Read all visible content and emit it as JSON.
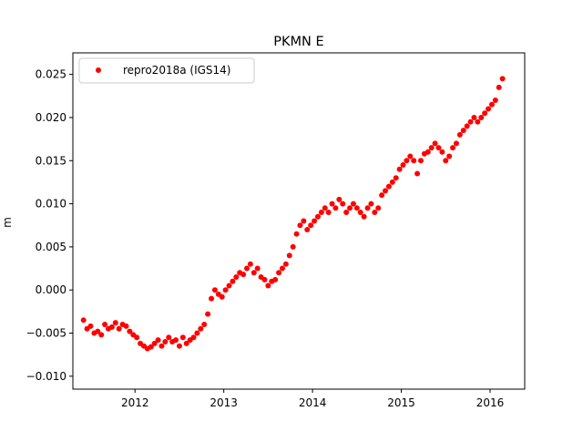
{
  "chart_data": {
    "type": "scatter",
    "title": "PKMN E",
    "xlabel": "",
    "ylabel": "m",
    "xlim": [
      2011.3,
      2016.39
    ],
    "ylim": [
      -0.0115,
      0.0275
    ],
    "xticks": [
      2012,
      2013,
      2014,
      2015,
      2016
    ],
    "xtick_labels": [
      "2012",
      "2013",
      "2014",
      "2015",
      "2016"
    ],
    "yticks": [
      -0.01,
      -0.005,
      0.0,
      0.005,
      0.01,
      0.015,
      0.02,
      0.025
    ],
    "ytick_labels": [
      "−0.010",
      "−0.005",
      "0.000",
      "0.005",
      "0.010",
      "0.015",
      "0.020",
      "0.025"
    ],
    "grid": false,
    "legend_position": "top-left",
    "series": [
      {
        "name": "repro2018a (IGS14)",
        "color": "#ff0000",
        "marker": "circle",
        "x": [
          2011.42,
          2011.46,
          2011.5,
          2011.54,
          2011.58,
          2011.62,
          2011.66,
          2011.7,
          2011.74,
          2011.78,
          2011.82,
          2011.86,
          2011.9,
          2011.94,
          2011.98,
          2012.02,
          2012.06,
          2012.1,
          2012.14,
          2012.18,
          2012.22,
          2012.26,
          2012.3,
          2012.34,
          2012.38,
          2012.42,
          2012.46,
          2012.5,
          2012.54,
          2012.58,
          2012.62,
          2012.66,
          2012.7,
          2012.74,
          2012.78,
          2012.82,
          2012.86,
          2012.9,
          2012.94,
          2012.98,
          2013.02,
          2013.06,
          2013.1,
          2013.14,
          2013.18,
          2013.22,
          2013.26,
          2013.3,
          2013.34,
          2013.38,
          2013.42,
          2013.46,
          2013.5,
          2013.54,
          2013.58,
          2013.62,
          2013.66,
          2013.7,
          2013.74,
          2013.78,
          2013.82,
          2013.86,
          2013.9,
          2013.94,
          2013.98,
          2014.02,
          2014.06,
          2014.1,
          2014.14,
          2014.18,
          2014.22,
          2014.26,
          2014.3,
          2014.34,
          2014.38,
          2014.42,
          2014.46,
          2014.5,
          2014.54,
          2014.58,
          2014.62,
          2014.66,
          2014.7,
          2014.74,
          2014.78,
          2014.82,
          2014.86,
          2014.9,
          2014.94,
          2014.98,
          2015.02,
          2015.06,
          2015.1,
          2015.14,
          2015.18,
          2015.22,
          2015.26,
          2015.3,
          2015.34,
          2015.38,
          2015.42,
          2015.46,
          2015.5,
          2015.54,
          2015.58,
          2015.62,
          2015.66,
          2015.7,
          2015.74,
          2015.78,
          2015.82,
          2015.86,
          2015.9,
          2015.94,
          2015.98,
          2016.02,
          2016.06,
          2016.1,
          2016.14
        ],
        "y": [
          -0.0035,
          -0.0045,
          -0.0042,
          -0.005,
          -0.0048,
          -0.0052,
          -0.004,
          -0.0045,
          -0.0043,
          -0.0038,
          -0.0045,
          -0.004,
          -0.0042,
          -0.0048,
          -0.0052,
          -0.0055,
          -0.0062,
          -0.0065,
          -0.0068,
          -0.0066,
          -0.0062,
          -0.0058,
          -0.0065,
          -0.006,
          -0.0055,
          -0.006,
          -0.0058,
          -0.0065,
          -0.0055,
          -0.0062,
          -0.0058,
          -0.0055,
          -0.005,
          -0.0045,
          -0.004,
          -0.0028,
          -0.001,
          0.0,
          -0.0005,
          -0.0008,
          0.0,
          0.0005,
          0.001,
          0.0015,
          0.002,
          0.0018,
          0.0025,
          0.003,
          0.002,
          0.0025,
          0.0015,
          0.0012,
          0.0005,
          0.001,
          0.0012,
          0.002,
          0.0025,
          0.003,
          0.004,
          0.005,
          0.0065,
          0.0075,
          0.008,
          0.007,
          0.0075,
          0.008,
          0.0085,
          0.009,
          0.0095,
          0.009,
          0.01,
          0.0095,
          0.0105,
          0.01,
          0.009,
          0.0095,
          0.01,
          0.0095,
          0.009,
          0.0085,
          0.0095,
          0.01,
          0.009,
          0.0095,
          0.011,
          0.0115,
          0.012,
          0.0125,
          0.013,
          0.014,
          0.0145,
          0.015,
          0.0155,
          0.015,
          0.0135,
          0.015,
          0.0158,
          0.016,
          0.0165,
          0.017,
          0.0165,
          0.016,
          0.015,
          0.0155,
          0.0165,
          0.017,
          0.018,
          0.0185,
          0.019,
          0.0195,
          0.02,
          0.0195,
          0.02,
          0.0205,
          0.021,
          0.0215,
          0.022,
          0.0235,
          0.0245
        ]
      }
    ]
  }
}
